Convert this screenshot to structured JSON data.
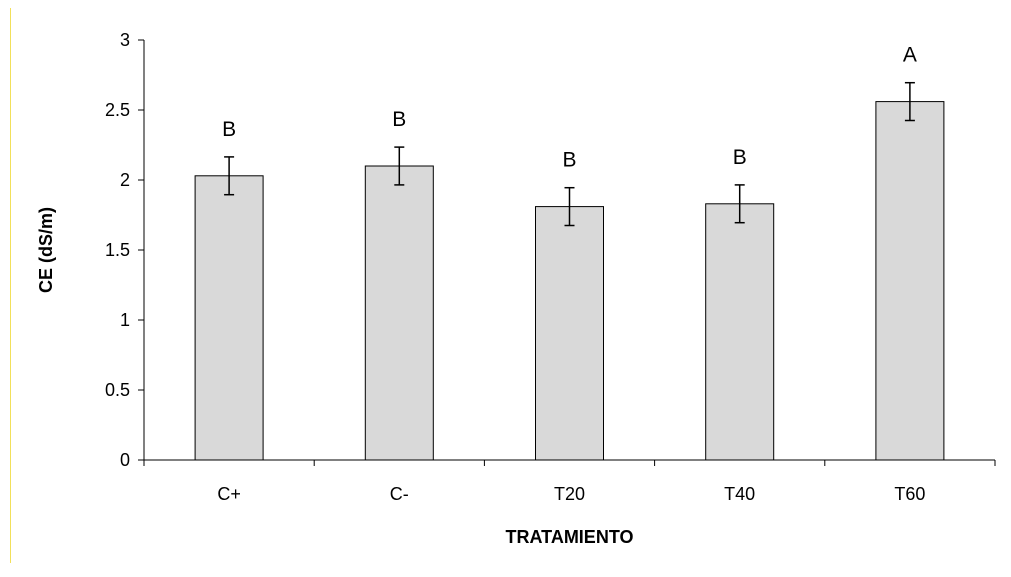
{
  "chart_data": {
    "type": "bar",
    "title": "",
    "xlabel": "TRATAMIENTO",
    "ylabel": "CE (dS/m)",
    "categories": [
      "C+",
      "C-",
      "T20",
      "T40",
      "T60"
    ],
    "values": [
      2.03,
      2.1,
      1.81,
      1.83,
      2.56
    ],
    "errors": [
      0.135,
      0.135,
      0.135,
      0.135,
      0.135
    ],
    "significance_labels": [
      "B",
      "B",
      "B",
      "B",
      "A"
    ],
    "ylim": [
      0,
      3
    ],
    "yticks": [
      "0",
      "0.5",
      "1",
      "1.5",
      "2",
      "2.5",
      "3"
    ],
    "ytick_values": [
      0,
      0.5,
      1,
      1.5,
      2,
      2.5,
      3
    ],
    "grid": false,
    "legend": "none",
    "bar_color": "#d9d9d9",
    "bar_edge_color": "#000000"
  }
}
